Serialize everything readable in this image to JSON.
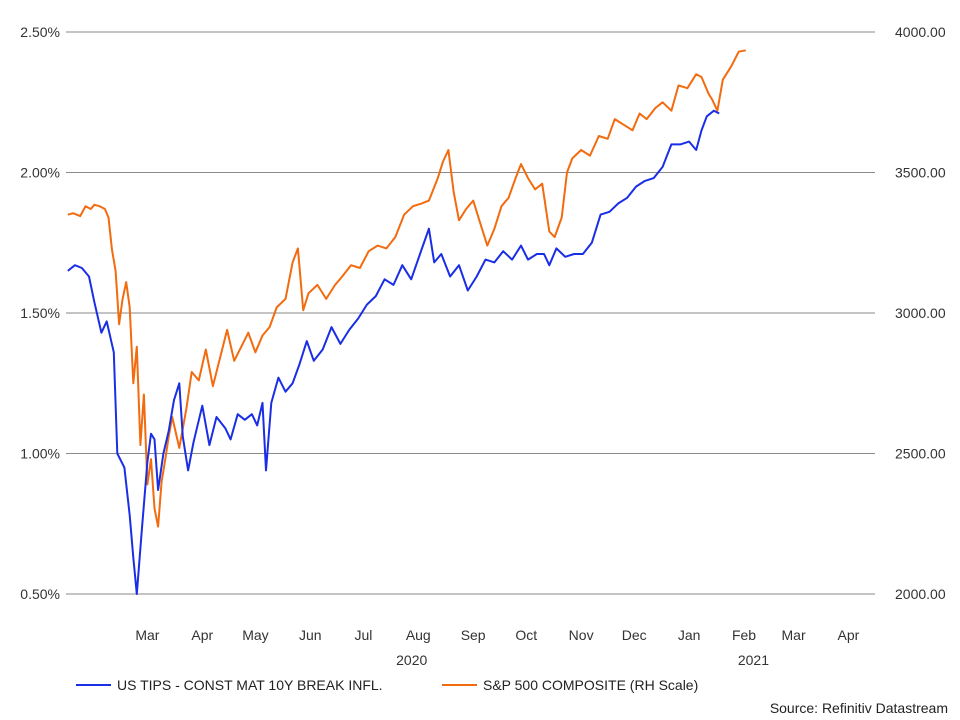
{
  "chart_data": {
    "type": "line",
    "title": "",
    "source": "Source: Refinitiv Datastream",
    "grid": true,
    "legend_placement": "bottom",
    "x_axis": {
      "months": [
        "Mar",
        "Apr",
        "May",
        "Jun",
        "Jul",
        "Aug",
        "Sep",
        "Oct",
        "Nov",
        "Dec",
        "Jan",
        "Feb",
        "Mar",
        "Apr"
      ],
      "years": [
        "2020",
        "2021"
      ],
      "range": [
        "2020-01-29",
        "2021-04-30"
      ]
    },
    "y_left": {
      "ticks": [
        "2.50%",
        "2.00%",
        "1.50%",
        "1.00%",
        "0.50%"
      ],
      "values": [
        2.5,
        2.0,
        1.5,
        1.0,
        0.5
      ],
      "range": [
        0.5,
        2.5
      ]
    },
    "y_right": {
      "ticks": [
        "4000.00",
        "3500.00",
        "3000.00",
        "2500.00",
        "2000.00"
      ],
      "values": [
        4000,
        3500,
        3000,
        2500,
        2000
      ],
      "range": [
        2000,
        4000
      ]
    },
    "series": [
      {
        "name": "US TIPS - CONST MAT 10Y BREAK INFL.",
        "axis": "left",
        "color": "#1a2ee6",
        "points": [
          [
            "2020-01-30",
            1.65
          ],
          [
            "2020-02-03",
            1.67
          ],
          [
            "2020-02-07",
            1.66
          ],
          [
            "2020-02-11",
            1.63
          ],
          [
            "2020-02-14",
            1.54
          ],
          [
            "2020-02-18",
            1.43
          ],
          [
            "2020-02-21",
            1.47
          ],
          [
            "2020-02-25",
            1.36
          ],
          [
            "2020-02-27",
            1.0
          ],
          [
            "2020-03-02",
            0.95
          ],
          [
            "2020-03-05",
            0.78
          ],
          [
            "2020-03-07",
            0.63
          ],
          [
            "2020-03-09",
            0.5
          ],
          [
            "2020-03-12",
            0.74
          ],
          [
            "2020-03-15",
            0.97
          ],
          [
            "2020-03-17",
            1.07
          ],
          [
            "2020-03-19",
            1.05
          ],
          [
            "2020-03-21",
            0.87
          ],
          [
            "2020-03-24",
            1.0
          ],
          [
            "2020-03-27",
            1.08
          ],
          [
            "2020-03-30",
            1.19
          ],
          [
            "2020-04-02",
            1.25
          ],
          [
            "2020-04-04",
            1.06
          ],
          [
            "2020-04-07",
            0.94
          ],
          [
            "2020-04-10",
            1.04
          ],
          [
            "2020-04-15",
            1.17
          ],
          [
            "2020-04-19",
            1.03
          ],
          [
            "2020-04-23",
            1.13
          ],
          [
            "2020-04-28",
            1.09
          ],
          [
            "2020-05-01",
            1.05
          ],
          [
            "2020-05-05",
            1.14
          ],
          [
            "2020-05-09",
            1.12
          ],
          [
            "2020-05-13",
            1.14
          ],
          [
            "2020-05-16",
            1.1
          ],
          [
            "2020-05-19",
            1.18
          ],
          [
            "2020-05-21",
            0.94
          ],
          [
            "2020-05-24",
            1.18
          ],
          [
            "2020-05-28",
            1.27
          ],
          [
            "2020-06-01",
            1.22
          ],
          [
            "2020-06-05",
            1.25
          ],
          [
            "2020-06-09",
            1.32
          ],
          [
            "2020-06-13",
            1.4
          ],
          [
            "2020-06-17",
            1.33
          ],
          [
            "2020-06-22",
            1.37
          ],
          [
            "2020-06-27",
            1.45
          ],
          [
            "2020-07-02",
            1.39
          ],
          [
            "2020-07-07",
            1.44
          ],
          [
            "2020-07-12",
            1.48
          ],
          [
            "2020-07-17",
            1.53
          ],
          [
            "2020-07-22",
            1.56
          ],
          [
            "2020-07-27",
            1.62
          ],
          [
            "2020-08-01",
            1.6
          ],
          [
            "2020-08-06",
            1.67
          ],
          [
            "2020-08-11",
            1.62
          ],
          [
            "2020-08-16",
            1.71
          ],
          [
            "2020-08-21",
            1.8
          ],
          [
            "2020-08-24",
            1.68
          ],
          [
            "2020-08-28",
            1.71
          ],
          [
            "2020-09-02",
            1.63
          ],
          [
            "2020-09-07",
            1.67
          ],
          [
            "2020-09-12",
            1.58
          ],
          [
            "2020-09-17",
            1.63
          ],
          [
            "2020-09-22",
            1.69
          ],
          [
            "2020-09-27",
            1.68
          ],
          [
            "2020-10-02",
            1.72
          ],
          [
            "2020-10-07",
            1.69
          ],
          [
            "2020-10-12",
            1.74
          ],
          [
            "2020-10-16",
            1.69
          ],
          [
            "2020-10-21",
            1.71
          ],
          [
            "2020-10-25",
            1.71
          ],
          [
            "2020-10-28",
            1.67
          ],
          [
            "2020-11-01",
            1.73
          ],
          [
            "2020-11-06",
            1.7
          ],
          [
            "2020-11-11",
            1.71
          ],
          [
            "2020-11-16",
            1.71
          ],
          [
            "2020-11-21",
            1.75
          ],
          [
            "2020-11-26",
            1.85
          ],
          [
            "2020-12-01",
            1.86
          ],
          [
            "2020-12-06",
            1.89
          ],
          [
            "2020-12-11",
            1.91
          ],
          [
            "2020-12-16",
            1.95
          ],
          [
            "2020-12-21",
            1.97
          ],
          [
            "2020-12-26",
            1.98
          ],
          [
            "2020-12-31",
            2.02
          ],
          [
            "2021-01-05",
            2.1
          ],
          [
            "2021-01-10",
            2.1
          ],
          [
            "2021-01-15",
            2.11
          ],
          [
            "2021-01-19",
            2.08
          ],
          [
            "2021-01-22",
            2.15
          ],
          [
            "2021-01-25",
            2.2
          ],
          [
            "2021-01-29",
            2.22
          ],
          [
            "2021-02-01",
            2.21
          ]
        ]
      },
      {
        "name": "S&P 500 COMPOSITE (RH Scale)",
        "axis": "right",
        "color": "#f26b0f",
        "points": [
          [
            "2020-01-30",
            3350
          ],
          [
            "2020-02-02",
            3355
          ],
          [
            "2020-02-06",
            3345
          ],
          [
            "2020-02-09",
            3380
          ],
          [
            "2020-02-12",
            3370
          ],
          [
            "2020-02-14",
            3385
          ],
          [
            "2020-02-17",
            3380
          ],
          [
            "2020-02-20",
            3370
          ],
          [
            "2020-02-22",
            3340
          ],
          [
            "2020-02-24",
            3225
          ],
          [
            "2020-02-26",
            3150
          ],
          [
            "2020-02-28",
            2960
          ],
          [
            "2020-03-01",
            3050
          ],
          [
            "2020-03-03",
            3110
          ],
          [
            "2020-03-05",
            3020
          ],
          [
            "2020-03-07",
            2750
          ],
          [
            "2020-03-09",
            2880
          ],
          [
            "2020-03-11",
            2530
          ],
          [
            "2020-03-13",
            2710
          ],
          [
            "2020-03-15",
            2390
          ],
          [
            "2020-03-17",
            2480
          ],
          [
            "2020-03-19",
            2305
          ],
          [
            "2020-03-21",
            2240
          ],
          [
            "2020-03-23",
            2400
          ],
          [
            "2020-03-25",
            2475
          ],
          [
            "2020-03-27",
            2560
          ],
          [
            "2020-03-29",
            2630
          ],
          [
            "2020-04-02",
            2520
          ],
          [
            "2020-04-06",
            2660
          ],
          [
            "2020-04-09",
            2790
          ],
          [
            "2020-04-13",
            2760
          ],
          [
            "2020-04-17",
            2870
          ],
          [
            "2020-04-21",
            2740
          ],
          [
            "2020-04-25",
            2840
          ],
          [
            "2020-04-29",
            2940
          ],
          [
            "2020-05-03",
            2830
          ],
          [
            "2020-05-07",
            2880
          ],
          [
            "2020-05-11",
            2930
          ],
          [
            "2020-05-15",
            2860
          ],
          [
            "2020-05-19",
            2920
          ],
          [
            "2020-05-23",
            2950
          ],
          [
            "2020-05-27",
            3020
          ],
          [
            "2020-06-01",
            3050
          ],
          [
            "2020-06-05",
            3180
          ],
          [
            "2020-06-08",
            3230
          ],
          [
            "2020-06-11",
            3010
          ],
          [
            "2020-06-14",
            3070
          ],
          [
            "2020-06-19",
            3100
          ],
          [
            "2020-06-24",
            3050
          ],
          [
            "2020-06-29",
            3100
          ],
          [
            "2020-07-03",
            3130
          ],
          [
            "2020-07-08",
            3170
          ],
          [
            "2020-07-13",
            3160
          ],
          [
            "2020-07-18",
            3220
          ],
          [
            "2020-07-23",
            3240
          ],
          [
            "2020-07-28",
            3230
          ],
          [
            "2020-08-02",
            3270
          ],
          [
            "2020-08-07",
            3350
          ],
          [
            "2020-08-12",
            3380
          ],
          [
            "2020-08-17",
            3390
          ],
          [
            "2020-08-21",
            3400
          ],
          [
            "2020-08-26",
            3480
          ],
          [
            "2020-08-29",
            3540
          ],
          [
            "2020-09-01",
            3580
          ],
          [
            "2020-09-04",
            3430
          ],
          [
            "2020-09-07",
            3330
          ],
          [
            "2020-09-11",
            3370
          ],
          [
            "2020-09-15",
            3400
          ],
          [
            "2020-09-19",
            3320
          ],
          [
            "2020-09-23",
            3240
          ],
          [
            "2020-09-27",
            3300
          ],
          [
            "2020-10-01",
            3380
          ],
          [
            "2020-10-05",
            3410
          ],
          [
            "2020-10-09",
            3480
          ],
          [
            "2020-10-12",
            3530
          ],
          [
            "2020-10-16",
            3480
          ],
          [
            "2020-10-20",
            3440
          ],
          [
            "2020-10-24",
            3460
          ],
          [
            "2020-10-28",
            3290
          ],
          [
            "2020-10-31",
            3270
          ],
          [
            "2020-11-04",
            3340
          ],
          [
            "2020-11-07",
            3500
          ],
          [
            "2020-11-10",
            3550
          ],
          [
            "2020-11-15",
            3580
          ],
          [
            "2020-11-20",
            3560
          ],
          [
            "2020-11-25",
            3630
          ],
          [
            "2020-11-30",
            3620
          ],
          [
            "2020-12-04",
            3690
          ],
          [
            "2020-12-09",
            3670
          ],
          [
            "2020-12-14",
            3650
          ],
          [
            "2020-12-18",
            3710
          ],
          [
            "2020-12-22",
            3690
          ],
          [
            "2020-12-27",
            3730
          ],
          [
            "2020-12-31",
            3750
          ],
          [
            "2021-01-05",
            3720
          ],
          [
            "2021-01-09",
            3810
          ],
          [
            "2021-01-14",
            3800
          ],
          [
            "2021-01-19",
            3850
          ],
          [
            "2021-01-22",
            3840
          ],
          [
            "2021-01-26",
            3780
          ],
          [
            "2021-01-28",
            3760
          ],
          [
            "2021-01-31",
            3720
          ],
          [
            "2021-02-03",
            3830
          ],
          [
            "2021-02-08",
            3880
          ],
          [
            "2021-02-12",
            3930
          ],
          [
            "2021-02-16",
            3935
          ]
        ]
      }
    ]
  }
}
